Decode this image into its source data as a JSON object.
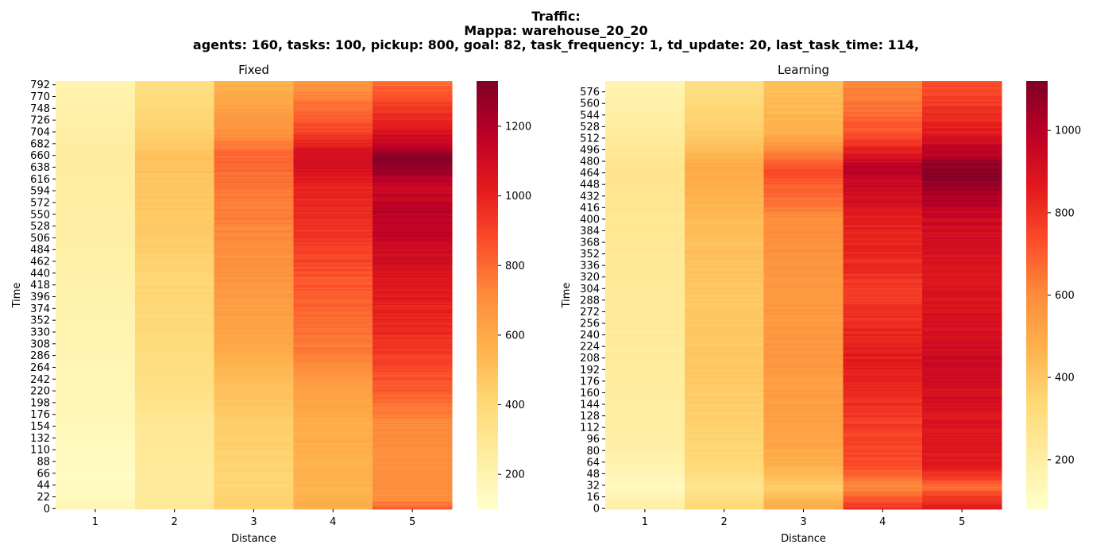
{
  "chart_data": {
    "title_lines": [
      "Traffic:",
      "Mappa: warehouse_20_20",
      "agents: 160, tasks: 100, pickup: 800, goal: 82, task_frequency: 1, td_update: 20, last_task_time: 114,"
    ],
    "colormap": "YlOrRd",
    "colormap_stops": [
      "#ffffcc",
      "#ffeda0",
      "#fed976",
      "#feb24c",
      "#fd8d3c",
      "#fc4e2a",
      "#e31a1c",
      "#bd0026",
      "#800026"
    ],
    "subplots": [
      {
        "type": "heatmap",
        "title": "Fixed",
        "xlabel": "Distance",
        "ylabel": "Time",
        "x_categories": [
          "1",
          "2",
          "3",
          "4",
          "5"
        ],
        "y_range": [
          0,
          800
        ],
        "y_step": 2,
        "y_tick_labels": [
          "0",
          "22",
          "44",
          "66",
          "88",
          "110",
          "132",
          "154",
          "176",
          "198",
          "220",
          "242",
          "264",
          "286",
          "308",
          "330",
          "352",
          "374",
          "396",
          "418",
          "440",
          "462",
          "484",
          "506",
          "528",
          "550",
          "572",
          "594",
          "616",
          "638",
          "660",
          "682",
          "704",
          "726",
          "748",
          "770",
          "792"
        ],
        "colorbar_range": [
          100,
          1330
        ],
        "colorbar_ticks": [
          200,
          400,
          600,
          800,
          1000,
          1200
        ],
        "column_profiles": [
          {
            "distance": "1",
            "keys": [
              [
                0,
                190
              ],
              [
                20,
                150
              ],
              [
                60,
                130
              ],
              [
                100,
                140
              ],
              [
                160,
                170
              ],
              [
                240,
                180
              ],
              [
                300,
                190
              ],
              [
                440,
                220
              ],
              [
                520,
                240
              ],
              [
                660,
                260
              ],
              [
                700,
                240
              ],
              [
                800,
                200
              ]
            ]
          },
          {
            "distance": "2",
            "keys": [
              [
                0,
                290
              ],
              [
                40,
                270
              ],
              [
                100,
                280
              ],
              [
                160,
                300
              ],
              [
                240,
                360
              ],
              [
                300,
                390
              ],
              [
                440,
                420
              ],
              [
                520,
                470
              ],
              [
                600,
                480
              ],
              [
                660,
                500
              ],
              [
                700,
                440
              ],
              [
                800,
                360
              ]
            ]
          },
          {
            "distance": "3",
            "keys": [
              [
                0,
                440
              ],
              [
                40,
                420
              ],
              [
                100,
                430
              ],
              [
                160,
                450
              ],
              [
                240,
                520
              ],
              [
                300,
                600
              ],
              [
                440,
                680
              ],
              [
                520,
                730
              ],
              [
                600,
                760
              ],
              [
                660,
                820
              ],
              [
                700,
                700
              ],
              [
                800,
                560
              ]
            ]
          },
          {
            "distance": "4",
            "keys": [
              [
                0,
                580
              ],
              [
                40,
                560
              ],
              [
                100,
                570
              ],
              [
                160,
                580
              ],
              [
                240,
                660
              ],
              [
                300,
                760
              ],
              [
                440,
                860
              ],
              [
                520,
                960
              ],
              [
                600,
                1000
              ],
              [
                660,
                1100
              ],
              [
                700,
                920
              ],
              [
                800,
                660
              ]
            ]
          },
          {
            "distance": "5",
            "keys": [
              [
                0,
                840
              ],
              [
                20,
                700
              ],
              [
                100,
                700
              ],
              [
                160,
                720
              ],
              [
                240,
                860
              ],
              [
                300,
                940
              ],
              [
                440,
                1060
              ],
              [
                520,
                1160
              ],
              [
                560,
                1180
              ],
              [
                600,
                1120
              ],
              [
                650,
                1330
              ],
              [
                700,
                1080
              ],
              [
                800,
                780
              ]
            ]
          }
        ]
      },
      {
        "type": "heatmap",
        "title": "Learning",
        "xlabel": "Distance",
        "ylabel": "Time",
        "x_categories": [
          "1",
          "2",
          "3",
          "4",
          "5"
        ],
        "y_range": [
          0,
          592
        ],
        "y_step": 2,
        "y_tick_labels": [
          "0",
          "16",
          "32",
          "48",
          "64",
          "80",
          "96",
          "112",
          "128",
          "144",
          "160",
          "176",
          "192",
          "208",
          "224",
          "240",
          "256",
          "272",
          "288",
          "304",
          "320",
          "336",
          "352",
          "368",
          "384",
          "400",
          "416",
          "432",
          "448",
          "464",
          "480",
          "496",
          "512",
          "528",
          "544",
          "560",
          "576"
        ],
        "colorbar_range": [
          80,
          1120
        ],
        "colorbar_ticks": [
          200,
          400,
          600,
          800,
          1000
        ],
        "column_profiles": [
          {
            "distance": "1",
            "keys": [
              [
                0,
                200
              ],
              [
                30,
                120
              ],
              [
                60,
                170
              ],
              [
                100,
                200
              ],
              [
                200,
                220
              ],
              [
                300,
                230
              ],
              [
                400,
                250
              ],
              [
                470,
                270
              ],
              [
                520,
                220
              ],
              [
                592,
                160
              ]
            ]
          },
          {
            "distance": "2",
            "keys": [
              [
                0,
                340
              ],
              [
                30,
                260
              ],
              [
                60,
                340
              ],
              [
                100,
                360
              ],
              [
                200,
                400
              ],
              [
                300,
                400
              ],
              [
                400,
                440
              ],
              [
                470,
                500
              ],
              [
                520,
                380
              ],
              [
                592,
                300
              ]
            ]
          },
          {
            "distance": "3",
            "keys": [
              [
                0,
                500
              ],
              [
                30,
                380
              ],
              [
                60,
                480
              ],
              [
                100,
                520
              ],
              [
                200,
                560
              ],
              [
                300,
                560
              ],
              [
                400,
                600
              ],
              [
                470,
                740
              ],
              [
                520,
                480
              ],
              [
                592,
                420
              ]
            ]
          },
          {
            "distance": "4",
            "keys": [
              [
                0,
                800
              ],
              [
                30,
                600
              ],
              [
                60,
                740
              ],
              [
                100,
                760
              ],
              [
                200,
                860
              ],
              [
                300,
                780
              ],
              [
                400,
                860
              ],
              [
                470,
                1000
              ],
              [
                520,
                720
              ],
              [
                592,
                600
              ]
            ]
          },
          {
            "distance": "5",
            "keys": [
              [
                0,
                880
              ],
              [
                30,
                680
              ],
              [
                60,
                860
              ],
              [
                100,
                880
              ],
              [
                200,
                940
              ],
              [
                300,
                880
              ],
              [
                400,
                940
              ],
              [
                465,
                1120
              ],
              [
                520,
                860
              ],
              [
                592,
                720
              ]
            ]
          }
        ]
      }
    ]
  }
}
